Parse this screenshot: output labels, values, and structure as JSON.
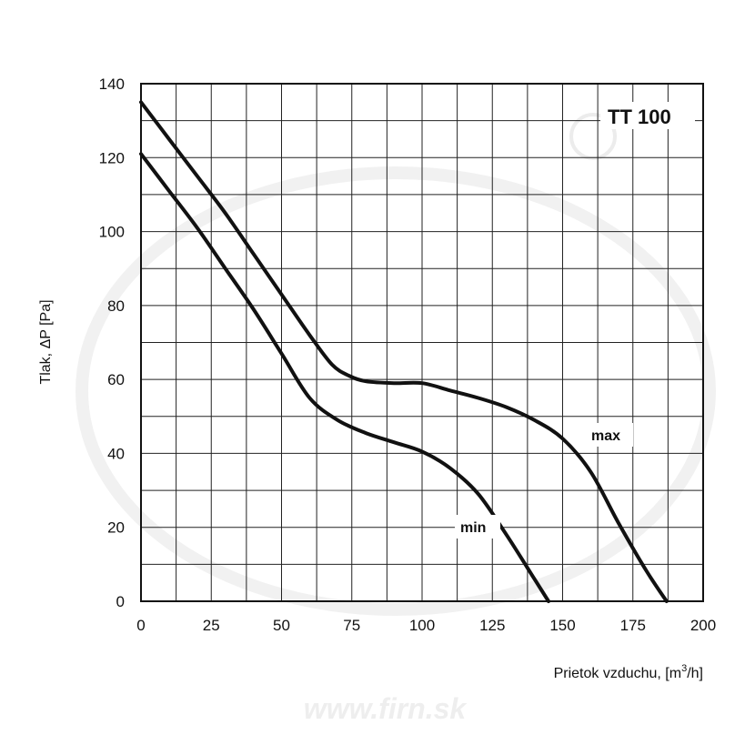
{
  "chart_data": {
    "type": "line",
    "title": "TT 100",
    "xlabel": "Prietok vzduchu, [m³/h]",
    "xlabel_main": "Prietok vzduchu, [m",
    "xlabel_sup": "3",
    "xlabel_tail": "/h]",
    "ylabel": "Tlak,  ΔP [Pa]",
    "xlim": [
      0,
      200
    ],
    "ylim": [
      0,
      140
    ],
    "x_ticks": [
      0,
      25,
      50,
      75,
      100,
      125,
      150,
      175,
      200
    ],
    "y_ticks": [
      0,
      20,
      40,
      60,
      80,
      100,
      120,
      140
    ],
    "grid": true,
    "series": [
      {
        "name": "max",
        "color": "#111111",
        "points": [
          [
            0,
            135
          ],
          [
            10,
            125
          ],
          [
            20,
            115
          ],
          [
            30,
            105
          ],
          [
            40,
            94
          ],
          [
            50,
            83
          ],
          [
            60,
            72
          ],
          [
            68,
            64
          ],
          [
            74,
            61
          ],
          [
            80,
            59.5
          ],
          [
            90,
            59
          ],
          [
            100,
            59
          ],
          [
            110,
            57
          ],
          [
            120,
            55
          ],
          [
            130,
            52.5
          ],
          [
            140,
            49
          ],
          [
            150,
            44
          ],
          [
            160,
            35
          ],
          [
            170,
            21
          ],
          [
            180,
            8
          ],
          [
            187,
            0
          ]
        ]
      },
      {
        "name": "min",
        "color": "#111111",
        "points": [
          [
            0,
            121
          ],
          [
            10,
            111
          ],
          [
            20,
            101
          ],
          [
            30,
            90
          ],
          [
            40,
            79
          ],
          [
            50,
            67
          ],
          [
            60,
            55
          ],
          [
            70,
            49
          ],
          [
            80,
            45.5
          ],
          [
            90,
            43
          ],
          [
            100,
            40.5
          ],
          [
            110,
            36
          ],
          [
            120,
            29
          ],
          [
            130,
            18
          ],
          [
            140,
            6
          ],
          [
            145,
            0
          ]
        ]
      }
    ],
    "watermark": "www.firn.sk"
  }
}
